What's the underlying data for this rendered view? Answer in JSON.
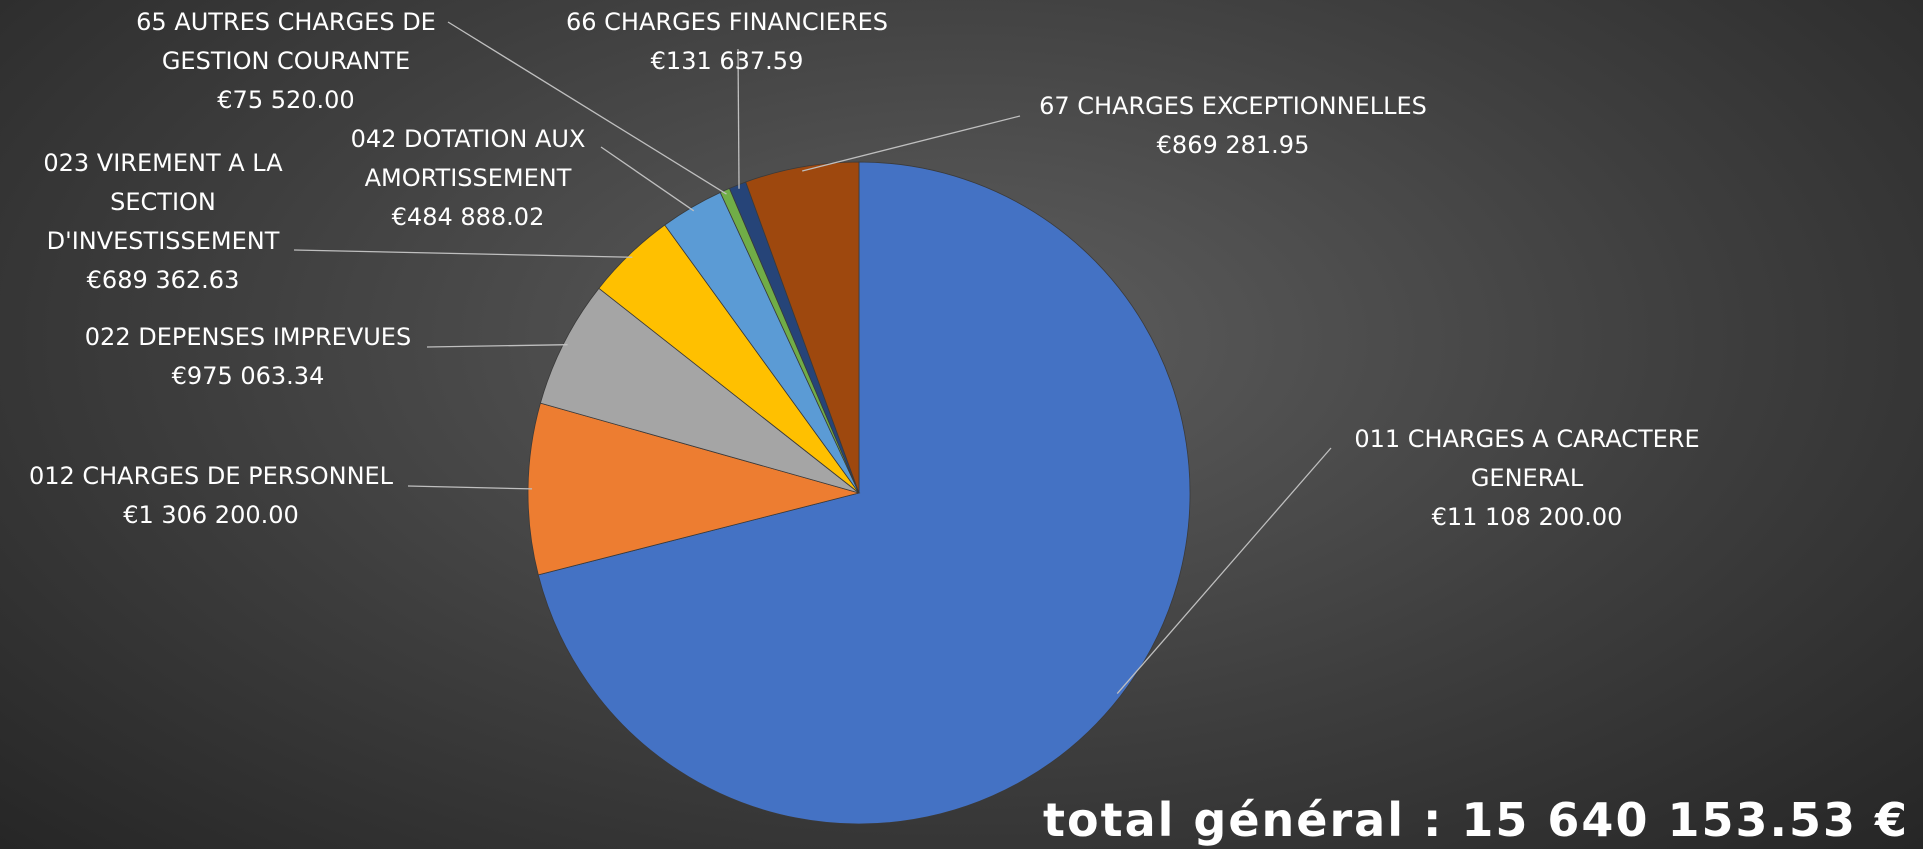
{
  "chart_data": {
    "type": "pie",
    "categories": [
      "011 CHARGES A CARACTERE GENERAL",
      "012 CHARGES DE PERSONNEL",
      "022 DEPENSES IMPREVUES",
      "023 VIREMENT A LA SECTION D'INVESTISSEMENT",
      "042 DOTATION AUX AMORTISSEMENT",
      "65 AUTRES CHARGES DE GESTION COURANTE",
      "66 CHARGES FINANCIERES",
      "67 CHARGES EXCEPTIONNELLES"
    ],
    "values": [
      11108200,
      1306200,
      975063.34,
      689362.63,
      484888.02,
      75520,
      131637.59,
      869281.95
    ],
    "value_labels": [
      "€11 108 200.00",
      "€1 306 200.00",
      "€975 063.34",
      "€689 362.63",
      "€484 888.02",
      "€75 520.00",
      "€131 637.59",
      "€869 281.95"
    ],
    "colors": [
      "#4472c4",
      "#ed7d31",
      "#a5a5a5",
      "#ffc000",
      "#5b9bd5",
      "#70ad47",
      "#264478",
      "#9e480e"
    ],
    "total": "total général : 15 640 153.53 €"
  }
}
